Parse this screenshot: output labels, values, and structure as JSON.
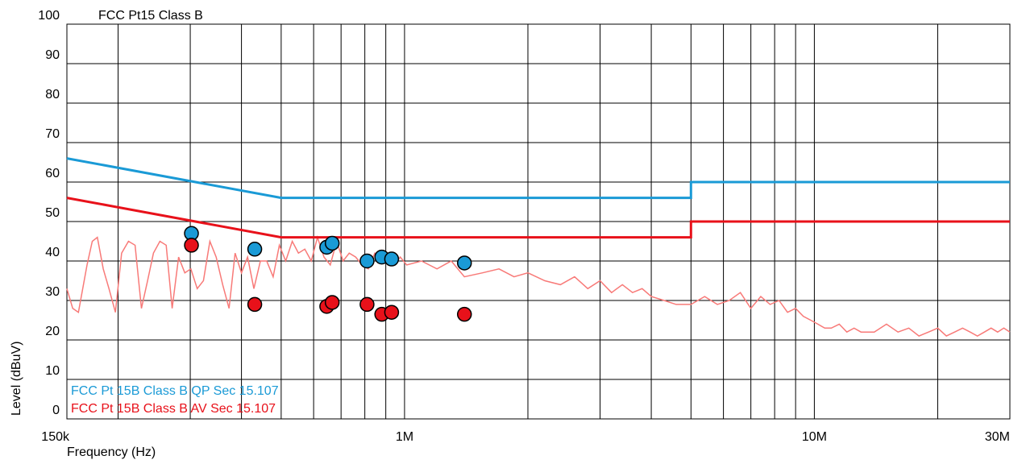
{
  "chart_data": {
    "type": "line",
    "title": "FCC Pt15 Class B",
    "xlabel": "Frequency (Hz)",
    "ylabel": "Level (dBuV)",
    "x_scale": "log",
    "xlim": [
      150000,
      30000000
    ],
    "ylim": [
      0,
      100
    ],
    "grid": true,
    "x_tick_values": [
      150000,
      1000000,
      10000000,
      30000000
    ],
    "x_tick_labels": [
      "150k",
      "1M",
      "10M",
      "30M"
    ],
    "y_ticks": [
      0,
      10,
      20,
      30,
      40,
      50,
      60,
      70,
      80,
      90,
      100
    ],
    "legend_position": "bottom-left",
    "series": [
      {
        "name": "FCC Pt 15B Class B QP Sec 15.107",
        "color": "#1a9ad6",
        "kind": "limit",
        "x": [
          150000,
          500000,
          500000,
          5000000,
          5000000,
          30000000
        ],
        "y": [
          66,
          56,
          56,
          56,
          60,
          60
        ]
      },
      {
        "name": "FCC Pt 15B Class B AV Sec 15.107",
        "color": "#e8111a",
        "kind": "limit",
        "x": [
          150000,
          500000,
          500000,
          5000000,
          5000000,
          30000000
        ],
        "y": [
          56,
          46,
          46,
          46,
          50,
          50
        ]
      },
      {
        "color": "#f87a78",
        "kind": "trace",
        "x": [
          150000,
          155000,
          160000,
          168000,
          173000,
          178000,
          184000,
          190000,
          197000,
          204000,
          212000,
          220000,
          228000,
          236000,
          244000,
          253000,
          262000,
          271000,
          281000,
          291000,
          301000,
          312000,
          323000,
          335000,
          347000,
          360000,
          373000,
          386000,
          400000,
          414000,
          429000,
          445000,
          461000,
          478000,
          495000,
          513000,
          532000,
          551000,
          571000,
          592000,
          613000,
          636000,
          659000,
          683000,
          708000,
          733000,
          760000,
          788000,
          816000,
          846000,
          877000,
          909000,
          942000,
          976000,
          1012000,
          1100000,
          1200000,
          1300000,
          1400000,
          1550000,
          1700000,
          1850000,
          2000000,
          2200000,
          2400000,
          2600000,
          2800000,
          3000000,
          3200000,
          3400000,
          3600000,
          3800000,
          4000000,
          4300000,
          4600000,
          5000000,
          5400000,
          5800000,
          6200000,
          6600000,
          7000000,
          7400000,
          7800000,
          8200000,
          8600000,
          9000000,
          9400000,
          9800000,
          10200000,
          10600000,
          11000000,
          11500000,
          12000000,
          12500000,
          13000000,
          14000000,
          15000000,
          16000000,
          17000000,
          18000000,
          19000000,
          20000000,
          21000000,
          22000000,
          23000000,
          24000000,
          25000000,
          26000000,
          27000000,
          28000000,
          29000000,
          30000000
        ],
        "y": [
          33,
          28,
          27,
          39,
          45,
          46,
          38,
          33,
          27,
          42,
          45,
          44,
          28,
          35,
          42,
          45,
          44,
          28,
          41,
          37,
          38,
          33,
          35,
          45,
          41,
          34,
          28,
          42,
          37,
          41,
          33,
          40,
          40,
          36,
          44,
          40,
          45,
          42,
          43,
          40,
          46,
          41,
          39,
          45,
          40,
          42,
          41,
          39,
          38,
          42,
          41,
          40,
          39,
          41,
          39,
          40,
          38,
          40,
          36,
          37,
          38,
          36,
          37,
          35,
          34,
          36,
          33,
          35,
          32,
          34,
          32,
          33,
          31,
          30,
          29,
          29,
          31,
          29,
          30,
          32,
          28,
          31,
          29,
          30,
          27,
          28,
          26,
          25,
          24,
          23,
          23,
          24,
          22,
          23,
          22,
          22,
          24,
          22,
          23,
          21,
          22,
          23,
          21,
          22,
          23,
          22,
          21,
          22,
          23,
          22,
          23,
          22
        ]
      },
      {
        "name": "QP",
        "color": "#1a9ad6",
        "kind": "points",
        "x": [
          302000,
          431000,
          646000,
          666000,
          810000,
          880000,
          930000,
          1400000
        ],
        "y": [
          47,
          43,
          43.5,
          44.5,
          40,
          41,
          40.5,
          39.5
        ]
      },
      {
        "name": "AV",
        "color": "#e8111a",
        "kind": "points",
        "x": [
          302000,
          431000,
          646000,
          666000,
          810000,
          880000,
          930000,
          1400000
        ],
        "y": [
          44,
          29,
          28.5,
          29.5,
          29,
          26.5,
          27,
          26.5
        ]
      }
    ]
  }
}
